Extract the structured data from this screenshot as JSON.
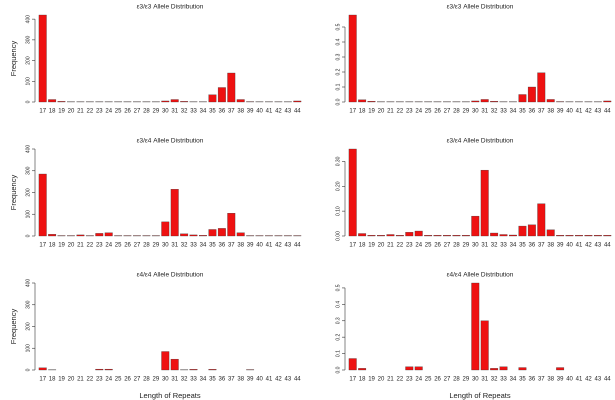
{
  "chart_data": [
    {
      "type": "bar",
      "title": "ε3/ε3 Allele Distribution",
      "y_label": "Frequency",
      "color": "#ee1111",
      "categories": [
        17,
        18,
        19,
        20,
        21,
        22,
        23,
        24,
        25,
        26,
        27,
        28,
        29,
        30,
        31,
        32,
        33,
        34,
        35,
        36,
        37,
        38,
        39,
        40,
        41,
        42,
        43,
        44
      ],
      "values": [
        420,
        12,
        3,
        1,
        1,
        1,
        1,
        1,
        1,
        1,
        1,
        1,
        1,
        5,
        12,
        3,
        1,
        1,
        35,
        70,
        140,
        12,
        2,
        1,
        1,
        1,
        1,
        5
      ],
      "ylim": [
        0,
        420
      ],
      "yticks": [
        0,
        100,
        200,
        300,
        400
      ]
    },
    {
      "type": "bar",
      "title": "ε3/ε3 Allele Distribution",
      "color": "#ee1111",
      "categories": [
        17,
        18,
        19,
        20,
        21,
        22,
        23,
        24,
        25,
        26,
        27,
        28,
        29,
        30,
        31,
        32,
        33,
        34,
        35,
        36,
        37,
        38,
        39,
        40,
        41,
        42,
        43,
        44
      ],
      "values": [
        0.58,
        0.015,
        0.005,
        0.002,
        0.002,
        0.002,
        0.002,
        0.002,
        0.002,
        0.002,
        0.002,
        0.002,
        0.002,
        0.007,
        0.017,
        0.005,
        0.002,
        0.002,
        0.05,
        0.1,
        0.195,
        0.017,
        0.003,
        0.002,
        0.002,
        0.002,
        0.002,
        0.007
      ],
      "ylim": [
        0,
        0.58
      ],
      "yticks": [
        {
          "value": 0,
          "label": "0.0"
        },
        0.1,
        0.2,
        0.3,
        0.4,
        0.5
      ]
    },
    {
      "type": "bar",
      "title": "ε3/ε4 Allele Distribution",
      "y_label": "Frequency",
      "color": "#ee1111",
      "categories": [
        17,
        18,
        19,
        20,
        21,
        22,
        23,
        24,
        25,
        26,
        27,
        28,
        29,
        30,
        31,
        32,
        33,
        34,
        35,
        36,
        37,
        38,
        39,
        40,
        41,
        42,
        43,
        44
      ],
      "values": [
        285,
        8,
        2,
        2,
        5,
        2,
        12,
        15,
        2,
        2,
        2,
        2,
        2,
        65,
        215,
        10,
        5,
        3,
        30,
        35,
        105,
        15,
        2,
        2,
        2,
        2,
        2,
        2
      ],
      "ylim": [
        0,
        400
      ],
      "yticks": [
        0,
        100,
        200,
        300,
        400
      ]
    },
    {
      "type": "bar",
      "title": "ε3/ε4 Allele Distribution",
      "color": "#ee1111",
      "categories": [
        17,
        18,
        19,
        20,
        21,
        22,
        23,
        24,
        25,
        26,
        27,
        28,
        29,
        30,
        31,
        32,
        33,
        34,
        35,
        36,
        37,
        38,
        39,
        40,
        41,
        42,
        43,
        44
      ],
      "values": [
        0.35,
        0.01,
        0.003,
        0.003,
        0.006,
        0.003,
        0.015,
        0.02,
        0.003,
        0.003,
        0.003,
        0.003,
        0.003,
        0.08,
        0.265,
        0.012,
        0.006,
        0.004,
        0.04,
        0.045,
        0.13,
        0.025,
        0.003,
        0.003,
        0.003,
        0.003,
        0.003,
        0.003
      ],
      "ylim": [
        0,
        0.35
      ],
      "yticks": [
        {
          "value": 0,
          "label": "0.00"
        },
        {
          "value": 0.1,
          "label": "0.10"
        },
        {
          "value": 0.2,
          "label": "0.20"
        },
        {
          "value": 0.3,
          "label": "0.30"
        }
      ]
    },
    {
      "type": "bar",
      "title": "ε4/ε4 Allele Distribution",
      "y_label": "Frequency",
      "x_label": "Length of Repeats",
      "color": "#ee1111",
      "categories": [
        17,
        18,
        19,
        20,
        21,
        22,
        23,
        24,
        25,
        26,
        27,
        28,
        29,
        30,
        31,
        32,
        33,
        34,
        35,
        36,
        37,
        38,
        39,
        40,
        41,
        42,
        43,
        44
      ],
      "values": [
        10,
        1,
        0,
        0,
        0,
        0,
        4,
        4,
        0,
        0,
        0,
        0,
        0,
        85,
        50,
        1,
        3,
        0,
        3,
        0,
        0,
        0,
        2,
        0,
        0,
        0,
        0,
        0
      ],
      "ylim": [
        0,
        400
      ],
      "yticks": [
        0,
        100,
        200,
        300,
        400
      ]
    },
    {
      "type": "bar",
      "title": "ε4/ε4 Allele Distribution",
      "x_label": "Length of Repeats",
      "color": "#ee1111",
      "categories": [
        17,
        18,
        19,
        20,
        21,
        22,
        23,
        24,
        25,
        26,
        27,
        28,
        29,
        30,
        31,
        32,
        33,
        34,
        35,
        36,
        37,
        38,
        39,
        40,
        41,
        42,
        43,
        44
      ],
      "values": [
        0.07,
        0.01,
        0,
        0,
        0,
        0,
        0.02,
        0.02,
        0,
        0,
        0,
        0,
        0,
        0.53,
        0.3,
        0.01,
        0.02,
        0,
        0.015,
        0,
        0,
        0,
        0.015,
        0,
        0,
        0,
        0,
        0
      ],
      "ylim": [
        0,
        0.53
      ],
      "yticks": [
        {
          "value": 0,
          "label": "0.0"
        },
        0.1,
        0.2,
        0.3,
        0.4,
        0.5
      ]
    }
  ]
}
